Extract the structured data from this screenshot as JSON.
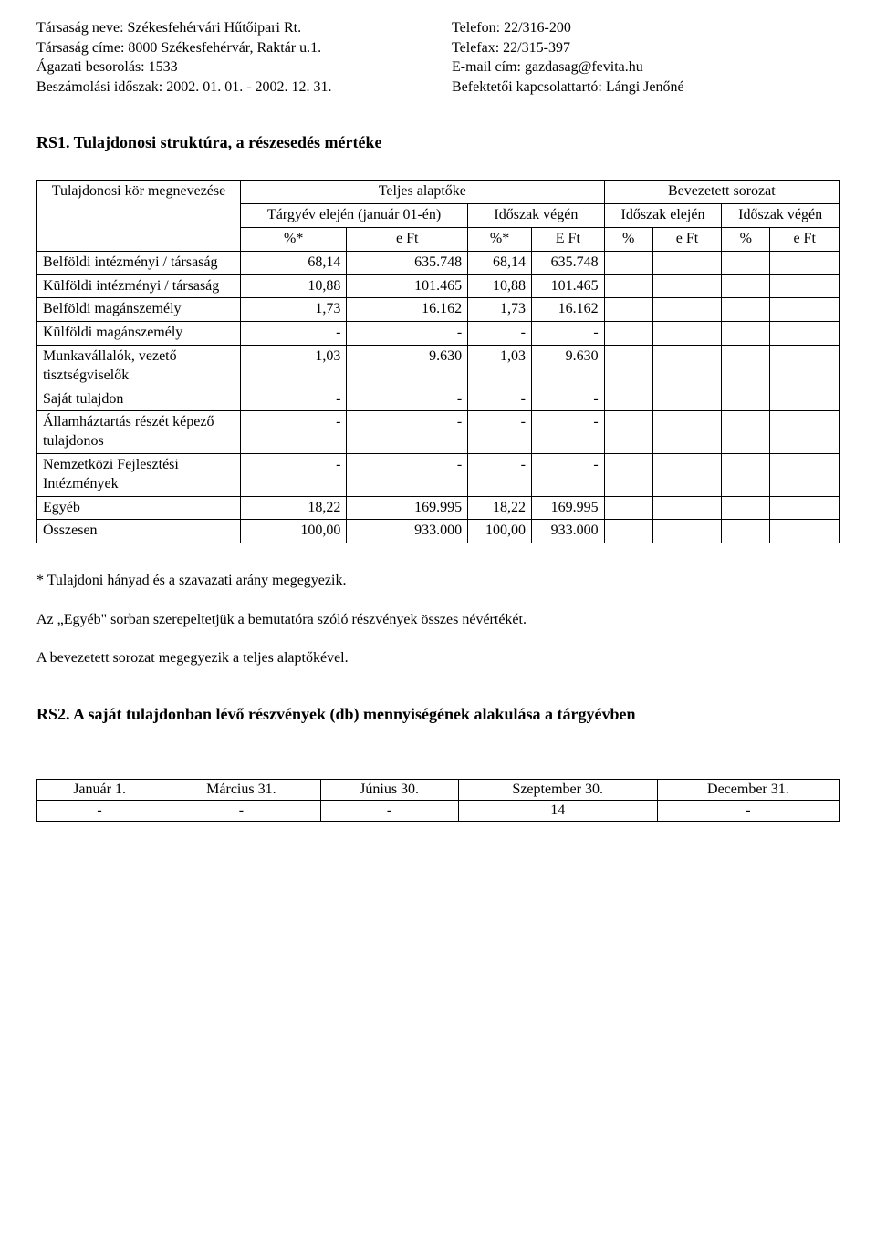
{
  "header": {
    "left": [
      "Társaság neve: Székesfehérvári Hűtőipari Rt.",
      "Társaság címe: 8000 Székesfehérvár, Raktár u.1.",
      "Ágazati besorolás: 1533",
      "Beszámolási időszak: 2002. 01. 01. - 2002. 12. 31."
    ],
    "right": [
      "Telefon: 22/316-200",
      "Telefax: 22/315-397",
      "E-mail cím: gazdasag@fevita.hu",
      "Befektetői kapcsolattartó: Lángi Jenőné"
    ]
  },
  "rs1_title": "RS1. Tulajdonosi struktúra, a részesedés mértéke",
  "table1": {
    "mainhead": {
      "col0": "Tulajdonosi kör megnevezése",
      "teljes": "Teljes alaptőke",
      "bevezetett": "Bevezetett sorozat",
      "targyev": "Tárgyév elején (január 01-én)",
      "idoszak_vegen": "Időszak végén",
      "idoszak_elejen": "Időszak elején",
      "idoszak_vegen2": "Időszak végén",
      "pct": "%*",
      "eft": "e Ft",
      "E_Ft": "E Ft",
      "pct_plain": "%"
    },
    "rows": [
      {
        "label": "Belföldi intézményi / társaság",
        "c1": "68,14",
        "c2": "635.748",
        "c3": "68,14",
        "c4": "635.748",
        "c5": "",
        "c6": "",
        "c7": "",
        "c8": ""
      },
      {
        "label": "Külföldi intézményi / társaság",
        "c1": "10,88",
        "c2": "101.465",
        "c3": "10,88",
        "c4": "101.465",
        "c5": "",
        "c6": "",
        "c7": "",
        "c8": ""
      },
      {
        "label": "Belföldi magánszemély",
        "c1": "1,73",
        "c2": "16.162",
        "c3": "1,73",
        "c4": "16.162",
        "c5": "",
        "c6": "",
        "c7": "",
        "c8": ""
      },
      {
        "label": "Külföldi magánszemély",
        "c1": "-",
        "c2": "-",
        "c3": "-",
        "c4": "-",
        "c5": "",
        "c6": "",
        "c7": "",
        "c8": ""
      },
      {
        "label": "Munkavállalók, vezető tisztségviselők",
        "c1": "1,03",
        "c2": "9.630",
        "c3": "1,03",
        "c4": "9.630",
        "c5": "",
        "c6": "",
        "c7": "",
        "c8": ""
      },
      {
        "label": "Saját tulajdon",
        "c1": "-",
        "c2": "-",
        "c3": "-",
        "c4": "-",
        "c5": "",
        "c6": "",
        "c7": "",
        "c8": ""
      },
      {
        "label": "Államháztartás részét képező tulajdonos",
        "c1": "-",
        "c2": "-",
        "c3": "-",
        "c4": "-",
        "c5": "",
        "c6": "",
        "c7": "",
        "c8": ""
      },
      {
        "label": "Nemzetközi Fejlesztési Intézmények",
        "c1": "-",
        "c2": "-",
        "c3": "-",
        "c4": "-",
        "c5": "",
        "c6": "",
        "c7": "",
        "c8": ""
      },
      {
        "label": "Egyéb",
        "c1": "18,22",
        "c2": "169.995",
        "c3": "18,22",
        "c4": "169.995",
        "c5": "",
        "c6": "",
        "c7": "",
        "c8": ""
      }
    ],
    "total": {
      "label": "Összesen",
      "c1": "100,00",
      "c2": "933.000",
      "c3": "100,00",
      "c4": "933.000",
      "c5": "",
      "c6": "",
      "c7": "",
      "c8": ""
    }
  },
  "notes": [
    "* Tulajdoni hányad és a szavazati arány megegyezik.",
    "Az „Egyéb\" sorban szerepeltetjük a bemutatóra szóló részvények összes névértékét.",
    "A bevezetett sorozat megegyezik a teljes alaptőkével."
  ],
  "rs2_title": "RS2. A saját tulajdonban lévő részvények (db) mennyiségének alakulása a tárgyévben",
  "table2": {
    "headers": [
      "Január 1.",
      "Március 31.",
      "Június 30.",
      "Szeptember 30.",
      "December 31."
    ],
    "values": [
      "-",
      "-",
      "-",
      "14",
      "-"
    ]
  }
}
